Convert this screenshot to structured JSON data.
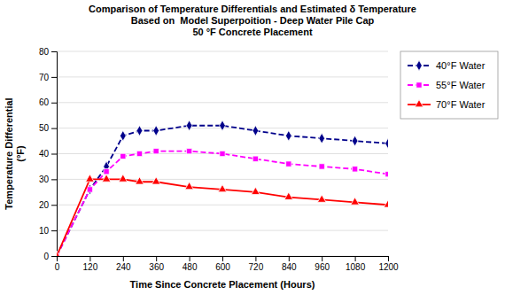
{
  "chart_data": {
    "type": "line",
    "title": "Comparison of Temperature Differentials and Estimated δ Temperature\nBased on  Model Superpoition - Deep Water Pile Cap\n50 °F Concrete Placement",
    "x_label": "Time Since Concrete Placement (Hours)",
    "y_label": "Temperature Differential\n(°F)",
    "x": [
      0,
      120,
      180,
      240,
      300,
      360,
      480,
      600,
      720,
      840,
      960,
      1080,
      1200
    ],
    "series": [
      {
        "name": "40°F Water",
        "color": "#00008B",
        "marker": "diamond",
        "line_style": "dashed",
        "values": [
          0,
          26,
          35,
          47,
          49,
          49,
          51,
          51,
          49,
          47,
          46,
          45,
          44
        ]
      },
      {
        "name": "55°F Water",
        "color": "#FF00FF",
        "marker": "square",
        "line_style": "dashed",
        "values": [
          0,
          26,
          33,
          39,
          40,
          41,
          41,
          40,
          38,
          36,
          35,
          34,
          32
        ]
      },
      {
        "name": "70°F Water",
        "color": "#FF0000",
        "marker": "triangle",
        "line_style": "solid",
        "values": [
          0,
          30,
          30,
          30,
          29,
          29,
          27,
          26,
          25,
          23,
          22,
          21,
          20
        ]
      }
    ],
    "xlim": [
      0,
      1200
    ],
    "ylim": [
      0,
      80
    ],
    "xticks": [
      0,
      120,
      240,
      360,
      480,
      600,
      720,
      840,
      960,
      1080,
      1200
    ],
    "yticks": [
      0,
      10,
      20,
      30,
      40,
      50,
      60,
      70,
      80
    ],
    "grid": "y",
    "legend": "right"
  }
}
